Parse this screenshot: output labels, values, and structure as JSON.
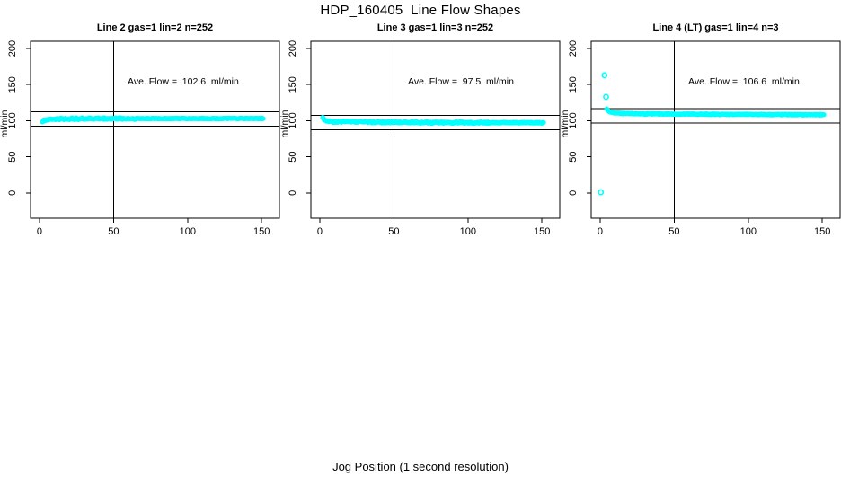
{
  "chart_data": {
    "type": "scatter",
    "suptitle": "HDP_160405  Line Flow Shapes",
    "outer_xlabel": "Jog Position (1 second resolution)",
    "point_color": "#00ffff",
    "axis_color": "#000000",
    "panels": [
      {
        "title": "Line 2 gas=1 lin=2 n=252",
        "annotation": "Ave. Flow =  102.6  ml/min",
        "ave_flow_ml_min": 102.6,
        "n_runs": 252,
        "ylabel": "ml/min",
        "x_ticks": [
          0,
          50,
          100,
          150
        ],
        "y_ticks": [
          0,
          50,
          100,
          150,
          200
        ],
        "xlim": [
          -6,
          162
        ],
        "ylim": [
          -35,
          210
        ],
        "vline_x": 50,
        "ref_lines": [
          112.6,
          92.6
        ],
        "x_range": [
          2,
          151
        ],
        "flow_profile": [
          [
            2,
            99
          ],
          [
            3,
            100.3
          ],
          [
            5,
            101.3
          ],
          [
            8,
            102
          ],
          [
            15,
            102.6
          ],
          [
            40,
            103
          ],
          [
            151,
            103.1
          ]
        ],
        "spread_zones": [
          [
            10,
            0.9
          ],
          [
            65,
            1.2
          ],
          [
            999,
            0.55
          ]
        ],
        "outliers": []
      },
      {
        "title": "Line 3 gas=1 lin=3 n=252",
        "annotation": "Ave. Flow =  97.5  ml/min",
        "ave_flow_ml_min": 97.5,
        "n_runs": 252,
        "ylabel": "ml/min",
        "x_ticks": [
          0,
          50,
          100,
          150
        ],
        "y_ticks": [
          0,
          50,
          100,
          150,
          200
        ],
        "xlim": [
          -6,
          162
        ],
        "ylim": [
          -35,
          210
        ],
        "vline_x": 50,
        "ref_lines": [
          107.5,
          87.5
        ],
        "x_range": [
          2,
          151
        ],
        "flow_profile": [
          [
            2,
            104.5
          ],
          [
            3,
            101
          ],
          [
            5,
            99.5
          ],
          [
            10,
            98.7
          ],
          [
            30,
            98.2
          ],
          [
            80,
            97.6
          ],
          [
            151,
            97.2
          ]
        ],
        "spread_zones": [
          [
            4,
            0.3
          ],
          [
            8,
            0.8
          ],
          [
            115,
            1.15
          ],
          [
            999,
            0.6
          ]
        ],
        "outliers": []
      },
      {
        "title": "Line 4 (LT) gas=1 lin=4 n=3",
        "annotation": "Ave. Flow =  106.6  ml/min",
        "ave_flow_ml_min": 106.6,
        "n_runs": 3,
        "ylabel": "ml/min",
        "x_ticks": [
          0,
          50,
          100,
          150
        ],
        "y_ticks": [
          0,
          50,
          100,
          150,
          200
        ],
        "xlim": [
          -6,
          162
        ],
        "ylim": [
          -35,
          210
        ],
        "vline_x": 50,
        "ref_lines": [
          116.6,
          96.6
        ],
        "x_range": [
          4.5,
          151
        ],
        "flow_profile": [
          [
            4.5,
            116.5
          ],
          [
            6,
            112.5
          ],
          [
            9,
            111
          ],
          [
            15,
            110
          ],
          [
            30,
            109.5
          ],
          [
            70,
            109
          ],
          [
            151,
            108.2
          ]
        ],
        "spread_zones": [
          [
            8,
            0.5
          ],
          [
            999,
            0.55
          ]
        ],
        "outliers": [
          [
            0.5,
            1
          ],
          [
            3,
            163
          ],
          [
            4,
            133
          ]
        ]
      }
    ]
  }
}
